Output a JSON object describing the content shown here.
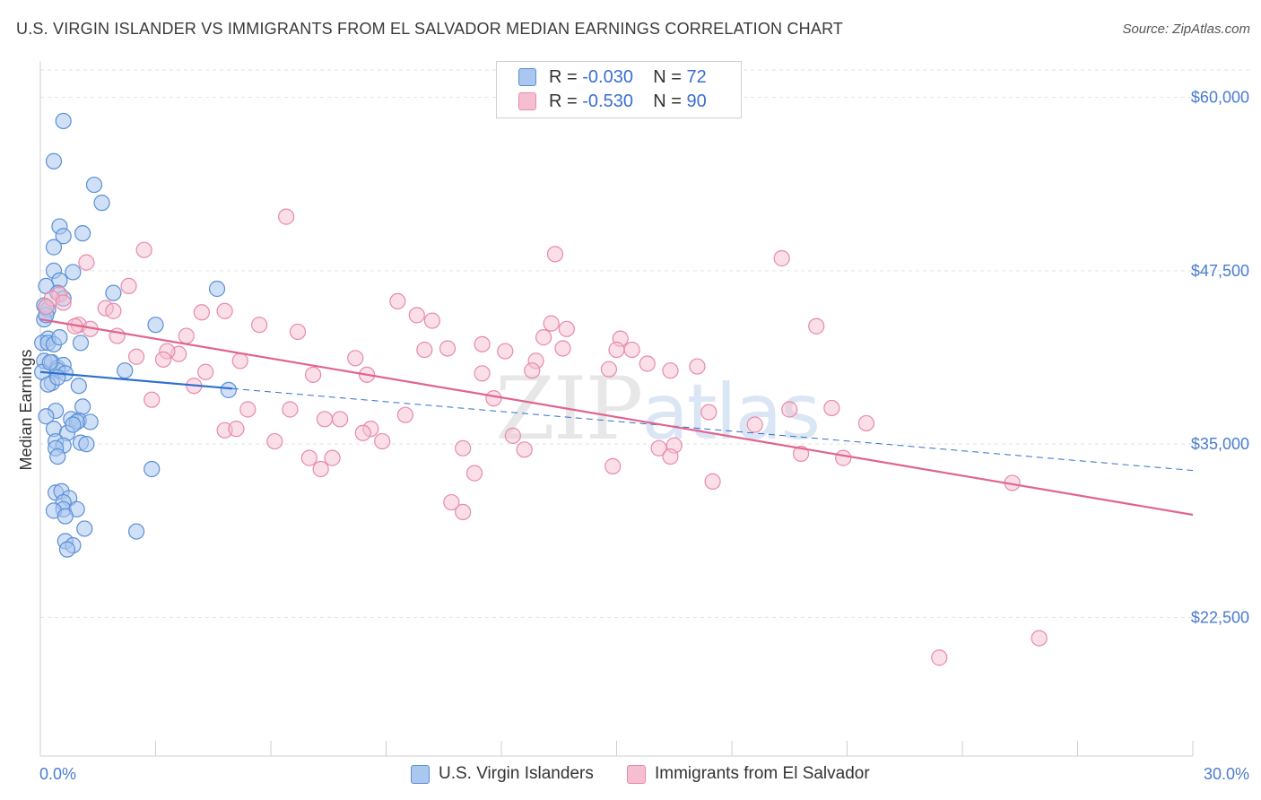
{
  "header": {
    "title": "U.S. VIRGIN ISLANDER VS IMMIGRANTS FROM EL SALVADOR MEDIAN EARNINGS CORRELATION CHART",
    "source": "Source: ZipAtlas.com"
  },
  "legend_top": {
    "rows": [
      {
        "r_label": "R = ",
        "r_value": "-0.030",
        "n_label": "N = ",
        "n_value": "72"
      },
      {
        "r_label": "R = ",
        "r_value": "-0.530",
        "n_label": "N = ",
        "n_value": "90"
      }
    ]
  },
  "watermark": {
    "zip": "ZIP",
    "atlas": "atlas"
  },
  "colors": {
    "blue_fill": "#a9c7ef",
    "blue_stroke": "#5b8fd6",
    "blue_line": "#2f6fce",
    "pink_fill": "#f6bfd1",
    "pink_stroke": "#e88aa8",
    "pink_line": "#e0648f",
    "tick_text": "#4a7bd0",
    "grid": "#e3e3e3"
  },
  "chart_data": {
    "type": "scatter",
    "title": "U.S. VIRGIN ISLANDER VS IMMIGRANTS FROM EL SALVADOR MEDIAN EARNINGS CORRELATION CHART",
    "xlabel": "",
    "ylabel": "Median Earnings",
    "xlim": [
      0,
      30
    ],
    "ylim": [
      12500,
      62500
    ],
    "x_tick_labels": [
      "0.0%",
      "30.0%"
    ],
    "y_ticks": [
      22500,
      35000,
      47500,
      60000
    ],
    "y_tick_labels": [
      "$22,500",
      "$35,000",
      "$47,500",
      "$60,000"
    ],
    "grid": true,
    "legend_position": "bottom",
    "series": [
      {
        "name": "U.S. Virgin Islanders",
        "R": -0.03,
        "N": 72,
        "trend": {
          "x": [
            0,
            5
          ],
          "y": [
            40200,
            39000
          ]
        },
        "trend_extension": {
          "x": [
            5,
            30
          ],
          "y": [
            39000,
            33100
          ]
        },
        "points": [
          [
            0.6,
            58300
          ],
          [
            0.35,
            55400
          ],
          [
            1.4,
            53700
          ],
          [
            1.6,
            52400
          ],
          [
            0.5,
            50700
          ],
          [
            0.6,
            50000
          ],
          [
            1.1,
            50200
          ],
          [
            0.35,
            49200
          ],
          [
            0.35,
            47500
          ],
          [
            0.85,
            47400
          ],
          [
            0.5,
            46800
          ],
          [
            0.15,
            46400
          ],
          [
            0.45,
            45900
          ],
          [
            0.6,
            45500
          ],
          [
            1.9,
            45900
          ],
          [
            4.6,
            46200
          ],
          [
            0.1,
            45000
          ],
          [
            0.2,
            44700
          ],
          [
            0.1,
            44000
          ],
          [
            0.15,
            44300
          ],
          [
            3.0,
            43600
          ],
          [
            0.2,
            42600
          ],
          [
            0.05,
            42300
          ],
          [
            0.2,
            42300
          ],
          [
            0.35,
            42200
          ],
          [
            1.05,
            42300
          ],
          [
            0.1,
            41000
          ],
          [
            0.3,
            40900
          ],
          [
            0.45,
            40500
          ],
          [
            0.6,
            40700
          ],
          [
            0.45,
            40300
          ],
          [
            0.65,
            40100
          ],
          [
            2.2,
            40300
          ],
          [
            0.05,
            40200
          ],
          [
            0.3,
            39400
          ],
          [
            0.2,
            39300
          ],
          [
            1.0,
            39200
          ],
          [
            4.9,
            38900
          ],
          [
            1.1,
            37700
          ],
          [
            0.4,
            37400
          ],
          [
            0.15,
            37000
          ],
          [
            0.8,
            36800
          ],
          [
            1.0,
            36700
          ],
          [
            1.3,
            36600
          ],
          [
            0.95,
            36600
          ],
          [
            0.35,
            36100
          ],
          [
            0.7,
            35800
          ],
          [
            0.4,
            35200
          ],
          [
            1.05,
            35100
          ],
          [
            0.6,
            34900
          ],
          [
            0.4,
            34700
          ],
          [
            0.45,
            34100
          ],
          [
            2.9,
            33200
          ],
          [
            0.4,
            31500
          ],
          [
            0.55,
            31600
          ],
          [
            0.75,
            31100
          ],
          [
            0.6,
            30800
          ],
          [
            0.6,
            30300
          ],
          [
            0.95,
            30300
          ],
          [
            0.35,
            30200
          ],
          [
            0.65,
            29800
          ],
          [
            1.15,
            28900
          ],
          [
            2.5,
            28700
          ],
          [
            0.65,
            28000
          ],
          [
            0.85,
            27700
          ],
          [
            0.7,
            27400
          ],
          [
            0.25,
            40900
          ],
          [
            0.5,
            42700
          ],
          [
            0.15,
            44900
          ],
          [
            0.85,
            36400
          ],
          [
            0.45,
            39800
          ],
          [
            1.2,
            35000
          ]
        ]
      },
      {
        "name": "Immigrants from El Salvador",
        "R": -0.53,
        "N": 90,
        "trend": {
          "x": [
            0,
            30
          ],
          "y": [
            44000,
            29900
          ]
        },
        "points": [
          [
            6.4,
            51400
          ],
          [
            2.7,
            49000
          ],
          [
            13.4,
            48700
          ],
          [
            19.3,
            48400
          ],
          [
            1.2,
            48100
          ],
          [
            2.3,
            46400
          ],
          [
            0.5,
            45800
          ],
          [
            0.3,
            45500
          ],
          [
            0.6,
            45200
          ],
          [
            0.15,
            44900
          ],
          [
            1.7,
            44800
          ],
          [
            1.9,
            44600
          ],
          [
            4.2,
            44500
          ],
          [
            4.8,
            44600
          ],
          [
            9.3,
            45300
          ],
          [
            9.8,
            44300
          ],
          [
            10.2,
            43900
          ],
          [
            13.3,
            43700
          ],
          [
            1.0,
            43600
          ],
          [
            1.3,
            43300
          ],
          [
            0.9,
            43500
          ],
          [
            5.7,
            43600
          ],
          [
            6.7,
            43100
          ],
          [
            13.7,
            43300
          ],
          [
            20.2,
            43500
          ],
          [
            2.0,
            42800
          ],
          [
            3.8,
            42800
          ],
          [
            13.1,
            42700
          ],
          [
            15.1,
            42600
          ],
          [
            11.5,
            42200
          ],
          [
            10.0,
            41800
          ],
          [
            10.6,
            41900
          ],
          [
            12.1,
            41700
          ],
          [
            13.6,
            41900
          ],
          [
            15.0,
            41800
          ],
          [
            15.4,
            41800
          ],
          [
            2.5,
            41300
          ],
          [
            3.6,
            41500
          ],
          [
            3.3,
            41700
          ],
          [
            3.2,
            41100
          ],
          [
            5.2,
            41000
          ],
          [
            8.2,
            41200
          ],
          [
            12.9,
            41000
          ],
          [
            15.8,
            40800
          ],
          [
            17.1,
            40600
          ],
          [
            4.3,
            40200
          ],
          [
            7.1,
            40000
          ],
          [
            11.5,
            40100
          ],
          [
            12.8,
            40300
          ],
          [
            14.8,
            40400
          ],
          [
            16.4,
            40300
          ],
          [
            8.5,
            40000
          ],
          [
            4.0,
            39200
          ],
          [
            2.9,
            38200
          ],
          [
            11.8,
            38300
          ],
          [
            6.5,
            37500
          ],
          [
            17.4,
            37300
          ],
          [
            19.5,
            37500
          ],
          [
            20.6,
            37600
          ],
          [
            5.4,
            37500
          ],
          [
            9.5,
            37100
          ],
          [
            7.8,
            36800
          ],
          [
            7.4,
            36800
          ],
          [
            18.6,
            36400
          ],
          [
            21.5,
            36500
          ],
          [
            4.8,
            36000
          ],
          [
            5.1,
            36100
          ],
          [
            8.6,
            36100
          ],
          [
            8.4,
            35800
          ],
          [
            12.3,
            35600
          ],
          [
            8.9,
            35200
          ],
          [
            6.1,
            35200
          ],
          [
            11.0,
            34700
          ],
          [
            12.6,
            34600
          ],
          [
            16.1,
            34700
          ],
          [
            16.5,
            34900
          ],
          [
            7.0,
            34000
          ],
          [
            7.6,
            34000
          ],
          [
            16.4,
            34100
          ],
          [
            19.8,
            34300
          ],
          [
            20.9,
            34000
          ],
          [
            7.3,
            33200
          ],
          [
            11.3,
            32900
          ],
          [
            14.9,
            33400
          ],
          [
            17.5,
            32300
          ],
          [
            10.7,
            30800
          ],
          [
            11.0,
            30100
          ],
          [
            25.3,
            32200
          ],
          [
            26.0,
            21000
          ],
          [
            23.4,
            19600
          ]
        ]
      }
    ]
  },
  "bottom_legend": {
    "items": [
      {
        "label": "U.S. Virgin Islanders"
      },
      {
        "label": "Immigrants from El Salvador"
      }
    ]
  },
  "axes": {
    "x_left_label": "0.0%",
    "x_right_label": "30.0%",
    "y_label": "Median Earnings"
  }
}
